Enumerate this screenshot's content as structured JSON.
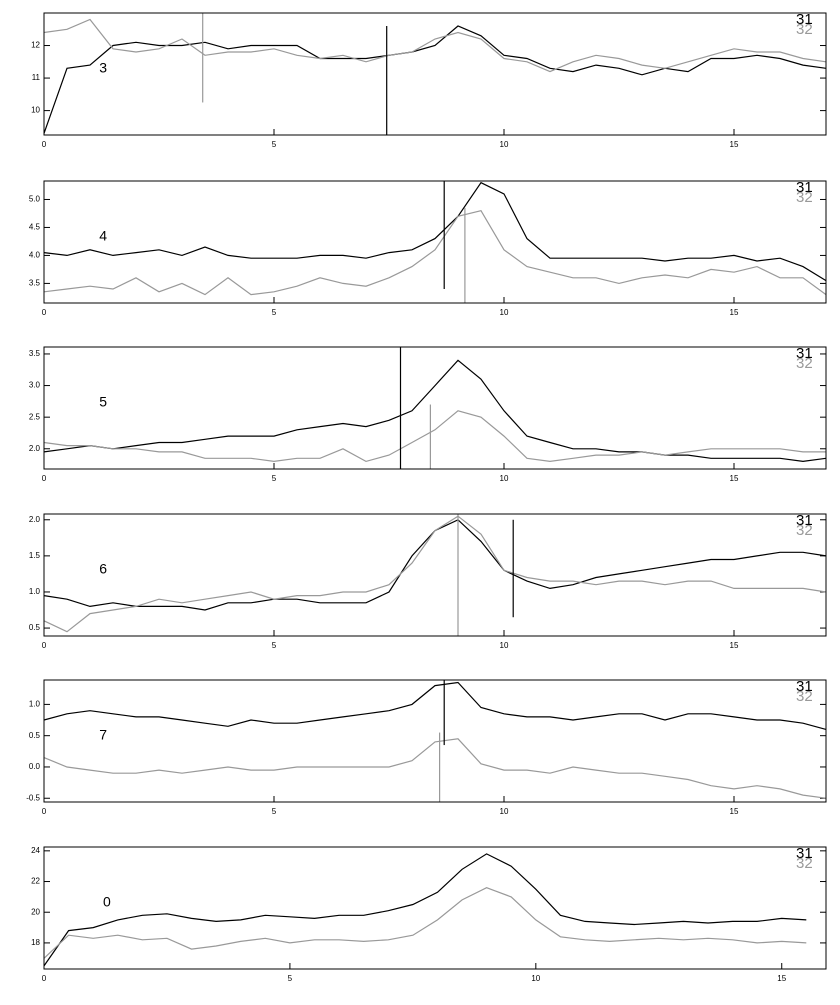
{
  "chart_data": [
    {
      "type": "line",
      "label": "3",
      "xlim": [
        0,
        17
      ],
      "xticks": [
        0,
        5,
        10,
        15
      ],
      "ylim": [
        9.25,
        13.0
      ],
      "yticks": [
        10,
        11,
        12
      ],
      "x": [
        0,
        0.5,
        1,
        1.5,
        2,
        2.5,
        3,
        3.5,
        4,
        4.5,
        5,
        5.5,
        6,
        6.5,
        7,
        7.5,
        8,
        8.5,
        9,
        9.5,
        10,
        10.5,
        11,
        11.5,
        12,
        12.5,
        13,
        13.5,
        14,
        14.5,
        15,
        15.5,
        16,
        16.5,
        17
      ],
      "series": [
        {
          "name": "31",
          "color": "#000000",
          "values": [
            9.3,
            11.3,
            11.4,
            12.0,
            12.1,
            12.0,
            12.0,
            12.1,
            11.9,
            12.0,
            12.0,
            12.0,
            11.6,
            11.6,
            11.6,
            11.7,
            11.8,
            12.0,
            12.6,
            12.3,
            11.7,
            11.6,
            11.3,
            11.2,
            11.4,
            11.3,
            11.1,
            11.3,
            11.2,
            11.6,
            11.6,
            11.7,
            11.6,
            11.4,
            11.3
          ]
        },
        {
          "name": "32",
          "color": "#999999",
          "values": [
            12.4,
            12.5,
            12.8,
            11.9,
            11.8,
            11.9,
            12.2,
            11.7,
            11.8,
            11.8,
            11.9,
            11.7,
            11.6,
            11.7,
            11.5,
            11.7,
            11.8,
            12.2,
            12.4,
            12.2,
            11.6,
            11.5,
            11.2,
            11.5,
            11.7,
            11.6,
            11.4,
            11.3,
            11.5,
            11.7,
            11.9,
            11.8,
            11.8,
            11.6,
            11.5
          ]
        }
      ],
      "vlines": [
        {
          "x": 3.45,
          "y": [
            10.25,
            13.0
          ],
          "color": "#999999"
        },
        {
          "x": 7.45,
          "y": [
            9.25,
            12.6
          ],
          "color": "#000000"
        }
      ]
    },
    {
      "type": "line",
      "label": "4",
      "xlim": [
        0,
        17
      ],
      "xticks": [
        0,
        5,
        10,
        15
      ],
      "ylim": [
        3.15,
        5.33
      ],
      "yticks": [
        {
          "value": 5,
          "label": "5.0"
        },
        4.5,
        {
          "value": 4,
          "label": "4.0"
        },
        3.5
      ],
      "x": [
        0,
        0.5,
        1,
        1.5,
        2,
        2.5,
        3,
        3.5,
        4,
        4.5,
        5,
        5.5,
        6,
        6.5,
        7,
        7.5,
        8,
        8.5,
        9,
        9.5,
        10,
        10.5,
        11,
        11.5,
        12,
        12.5,
        13,
        13.5,
        14,
        14.5,
        15,
        15.5,
        16,
        16.5,
        17
      ],
      "series": [
        {
          "name": "31",
          "color": "#000000",
          "values": [
            4.05,
            4.0,
            4.1,
            4.0,
            4.05,
            4.1,
            4.0,
            4.15,
            4.0,
            3.95,
            3.95,
            3.95,
            4.0,
            4.0,
            3.95,
            4.05,
            4.1,
            4.3,
            4.7,
            5.3,
            5.1,
            4.3,
            3.95,
            3.95,
            3.95,
            3.95,
            3.95,
            3.9,
            3.95,
            3.95,
            4.0,
            3.9,
            3.95,
            3.8,
            3.55
          ]
        },
        {
          "name": "32",
          "color": "#999999",
          "values": [
            3.35,
            3.4,
            3.45,
            3.4,
            3.6,
            3.35,
            3.5,
            3.3,
            3.6,
            3.3,
            3.35,
            3.45,
            3.6,
            3.5,
            3.45,
            3.6,
            3.8,
            4.1,
            4.7,
            4.8,
            4.1,
            3.8,
            3.7,
            3.6,
            3.6,
            3.5,
            3.6,
            3.65,
            3.6,
            3.75,
            3.7,
            3.8,
            3.6,
            3.6,
            3.3
          ]
        }
      ],
      "vlines": [
        {
          "x": 8.7,
          "y": [
            3.4,
            5.33
          ],
          "color": "#000000"
        },
        {
          "x": 9.15,
          "y": [
            3.15,
            4.85
          ],
          "color": "#999999"
        }
      ]
    },
    {
      "type": "line",
      "label": "5",
      "xlim": [
        0,
        17
      ],
      "xticks": [
        0,
        5,
        10,
        15
      ],
      "ylim": [
        1.68,
        3.61
      ],
      "yticks": [
        3.5,
        {
          "value": 3,
          "label": "3.0"
        },
        2.5,
        {
          "value": 2,
          "label": "2.0"
        }
      ],
      "x": [
        0,
        0.5,
        1,
        1.5,
        2,
        2.5,
        3,
        3.5,
        4,
        4.5,
        5,
        5.5,
        6,
        6.5,
        7,
        7.5,
        8,
        8.5,
        9,
        9.5,
        10,
        10.5,
        11,
        11.5,
        12,
        12.5,
        13,
        13.5,
        14,
        14.5,
        15,
        15.5,
        16,
        16.5,
        17
      ],
      "series": [
        {
          "name": "31",
          "color": "#000000",
          "values": [
            1.95,
            2.0,
            2.05,
            2.0,
            2.05,
            2.1,
            2.1,
            2.15,
            2.2,
            2.2,
            2.2,
            2.3,
            2.35,
            2.4,
            2.35,
            2.45,
            2.6,
            3.0,
            3.4,
            3.1,
            2.6,
            2.2,
            2.1,
            2.0,
            2.0,
            1.95,
            1.95,
            1.9,
            1.9,
            1.85,
            1.85,
            1.85,
            1.85,
            1.8,
            1.85
          ]
        },
        {
          "name": "32",
          "color": "#999999",
          "values": [
            2.1,
            2.05,
            2.05,
            2.0,
            2.0,
            1.95,
            1.95,
            1.85,
            1.85,
            1.85,
            1.8,
            1.85,
            1.85,
            2.0,
            1.8,
            1.9,
            2.1,
            2.3,
            2.6,
            2.5,
            2.2,
            1.85,
            1.8,
            1.85,
            1.9,
            1.9,
            1.95,
            1.9,
            1.95,
            2.0,
            2.0,
            2.0,
            2.0,
            1.95,
            1.95
          ]
        }
      ],
      "vlines": [
        {
          "x": 7.75,
          "y": [
            1.68,
            3.61
          ],
          "color": "#000000"
        },
        {
          "x": 8.4,
          "y": [
            1.68,
            2.7
          ],
          "color": "#999999"
        }
      ]
    },
    {
      "type": "line",
      "label": "6",
      "xlim": [
        0,
        17
      ],
      "xticks": [
        0,
        5,
        10,
        15
      ],
      "ylim": [
        0.39,
        2.08
      ],
      "yticks": [
        {
          "value": 2,
          "label": "2.0"
        },
        1.5,
        {
          "value": 1,
          "label": "1.0"
        },
        0.5
      ],
      "x": [
        0,
        0.5,
        1,
        1.5,
        2,
        2.5,
        3,
        3.5,
        4,
        4.5,
        5,
        5.5,
        6,
        6.5,
        7,
        7.5,
        8,
        8.5,
        9,
        9.5,
        10,
        10.5,
        11,
        11.5,
        12,
        12.5,
        13,
        13.5,
        14,
        14.5,
        15,
        15.5,
        16,
        16.5,
        17
      ],
      "series": [
        {
          "name": "31",
          "color": "#000000",
          "values": [
            0.95,
            0.9,
            0.8,
            0.85,
            0.8,
            0.8,
            0.8,
            0.75,
            0.85,
            0.85,
            0.9,
            0.9,
            0.85,
            0.85,
            0.85,
            1.0,
            1.5,
            1.85,
            2.0,
            1.7,
            1.3,
            1.15,
            1.05,
            1.1,
            1.2,
            1.25,
            1.3,
            1.35,
            1.4,
            1.45,
            1.45,
            1.5,
            1.55,
            1.55,
            1.5
          ]
        },
        {
          "name": "32",
          "color": "#999999",
          "values": [
            0.6,
            0.45,
            0.7,
            0.75,
            0.8,
            0.9,
            0.85,
            0.9,
            0.95,
            1.0,
            0.9,
            0.95,
            0.95,
            1.0,
            1.0,
            1.1,
            1.4,
            1.85,
            2.05,
            1.8,
            1.3,
            1.2,
            1.15,
            1.15,
            1.1,
            1.15,
            1.15,
            1.1,
            1.15,
            1.15,
            1.05,
            1.05,
            1.05,
            1.05,
            1.0
          ]
        }
      ],
      "vlines": [
        {
          "x": 9.0,
          "y": [
            0.39,
            2.08
          ],
          "color": "#999999"
        },
        {
          "x": 10.2,
          "y": [
            0.65,
            2.0
          ],
          "color": "#000000"
        }
      ]
    },
    {
      "type": "line",
      "label": "7",
      "xlim": [
        0,
        17
      ],
      "xticks": [
        0,
        5,
        10,
        15
      ],
      "ylim": [
        -0.56,
        1.39
      ],
      "yticks": [
        {
          "value": 1,
          "label": "1.0"
        },
        0.5,
        {
          "value": 0,
          "label": "0.0"
        },
        -0.5
      ],
      "x": [
        0,
        0.5,
        1,
        1.5,
        2,
        2.5,
        3,
        3.5,
        4,
        4.5,
        5,
        5.5,
        6,
        6.5,
        7,
        7.5,
        8,
        8.5,
        9,
        9.5,
        10,
        10.5,
        11,
        11.5,
        12,
        12.5,
        13,
        13.5,
        14,
        14.5,
        15,
        15.5,
        16,
        16.5,
        17
      ],
      "series": [
        {
          "name": "31",
          "color": "#000000",
          "values": [
            0.75,
            0.85,
            0.9,
            0.85,
            0.8,
            0.8,
            0.75,
            0.7,
            0.65,
            0.75,
            0.7,
            0.7,
            0.75,
            0.8,
            0.85,
            0.9,
            1.0,
            1.3,
            1.35,
            0.95,
            0.85,
            0.8,
            0.8,
            0.75,
            0.8,
            0.85,
            0.85,
            0.75,
            0.85,
            0.85,
            0.8,
            0.75,
            0.75,
            0.7,
            0.6
          ]
        },
        {
          "name": "32",
          "color": "#999999",
          "values": [
            0.15,
            0.0,
            -0.05,
            -0.1,
            -0.1,
            -0.05,
            -0.1,
            -0.05,
            0.0,
            -0.05,
            -0.05,
            0.0,
            0.0,
            0.0,
            0.0,
            0.0,
            0.1,
            0.4,
            0.45,
            0.05,
            -0.05,
            -0.05,
            -0.1,
            0.0,
            -0.05,
            -0.1,
            -0.1,
            -0.15,
            -0.2,
            -0.3,
            -0.35,
            -0.3,
            -0.35,
            -0.45,
            -0.5
          ]
        }
      ],
      "vlines": [
        {
          "x": 8.7,
          "y": [
            0.35,
            1.39
          ],
          "color": "#000000"
        },
        {
          "x": 8.6,
          "y": [
            -0.56,
            0.55
          ],
          "color": "#999999"
        }
      ]
    },
    {
      "type": "line",
      "label": "0",
      "xlim": [
        0,
        15.9
      ],
      "xticks": [
        0,
        5,
        10,
        15
      ],
      "ylim": [
        16.3,
        24.25
      ],
      "yticks": [
        24,
        22,
        20,
        18
      ],
      "x": [
        0,
        0.5,
        1,
        1.5,
        2,
        2.5,
        3,
        3.5,
        4,
        4.5,
        5,
        5.5,
        6,
        6.5,
        7,
        7.5,
        8,
        8.5,
        9,
        9.5,
        10,
        10.5,
        11,
        11.5,
        12,
        12.5,
        13,
        13.5,
        14,
        14.5,
        15,
        15.5
      ],
      "series": [
        {
          "name": "31",
          "color": "#000000",
          "values": [
            16.5,
            18.8,
            19.0,
            19.5,
            19.8,
            19.9,
            19.6,
            19.4,
            19.5,
            19.8,
            19.7,
            19.6,
            19.8,
            19.8,
            20.1,
            20.5,
            21.3,
            22.8,
            23.8,
            23.0,
            21.5,
            19.8,
            19.4,
            19.3,
            19.2,
            19.3,
            19.4,
            19.3,
            19.4,
            19.4,
            19.6,
            19.5
          ]
        },
        {
          "name": "32",
          "color": "#999999",
          "values": [
            17.0,
            18.5,
            18.3,
            18.5,
            18.2,
            18.3,
            17.6,
            17.8,
            18.1,
            18.3,
            18.0,
            18.2,
            18.2,
            18.1,
            18.2,
            18.5,
            19.5,
            20.8,
            21.6,
            21.0,
            19.5,
            18.4,
            18.2,
            18.1,
            18.2,
            18.3,
            18.2,
            18.3,
            18.2,
            18.0,
            18.1,
            18.0
          ]
        }
      ],
      "vlines": []
    }
  ]
}
